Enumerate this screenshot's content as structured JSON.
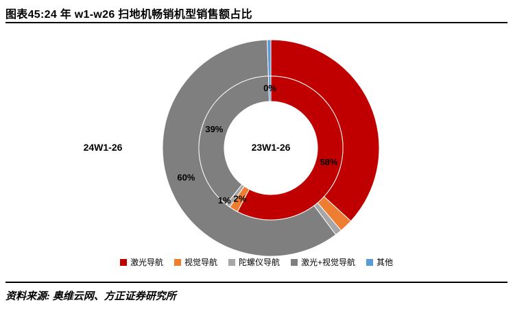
{
  "header": {
    "title": "图表45:24 年 w1-w26 扫地机畅销机型销售额占比"
  },
  "footer": {
    "source": "资料来源: 奥维云网、方正证券研究所"
  },
  "chart_data": {
    "type": "pie",
    "subtype": "double-donut",
    "title": "24 年 w1-w26 扫地机畅销机型销售额占比",
    "unit": "% of sales value",
    "categories": [
      "激光导航",
      "视觉导航",
      "陀螺仪导航",
      "激光+视觉导航",
      "其他"
    ],
    "colors": [
      "#c00000",
      "#ed7d31",
      "#a6a6a6",
      "#7f7f7f",
      "#5b9bd5"
    ],
    "series": [
      {
        "name": "23W1-26",
        "ring": "inner",
        "values": [
          58,
          2,
          1,
          39,
          0
        ],
        "labels": [
          "58%",
          "2%",
          "1%",
          "39%",
          "0%"
        ],
        "labels_visible": [
          true,
          true,
          true,
          true,
          true
        ]
      },
      {
        "name": "24W1-26",
        "ring": "outer",
        "values": [
          37,
          2,
          1,
          60,
          0
        ],
        "labels": [
          "37%",
          "2%",
          "1%",
          "60%",
          "0%"
        ],
        "labels_visible": [
          false,
          false,
          false,
          true,
          false
        ]
      }
    ],
    "inner_ring_label": "23W1-26",
    "outer_ring_label": "24W1-26",
    "legend": [
      "激光导航",
      "视觉导航",
      "陀螺仪导航",
      "激光+视觉导航",
      "其他"
    ],
    "legend_position": "bottom"
  }
}
